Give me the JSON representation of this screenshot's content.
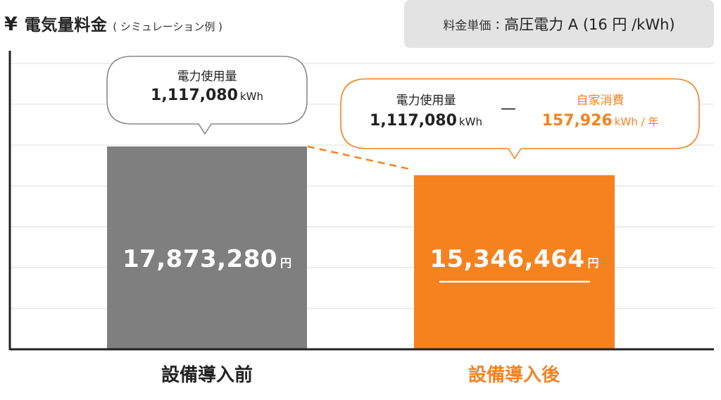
{
  "title": {
    "icon": "yen-icon",
    "yen_symbol": "¥",
    "main": "電気量料金",
    "sub": "( シミュレーション例 )"
  },
  "price_box": {
    "label": "料金単価",
    "colon": ":",
    "value": "高圧電力 A (16 円 /kWh)"
  },
  "bubble_before": {
    "label": "電力使用量",
    "value": "1,117,080",
    "unit": "kWh"
  },
  "bubble_after": {
    "usage_label": "電力使用量",
    "usage_value": "1,117,080",
    "usage_unit": "kWh",
    "minus": "—",
    "self_label": "自家消費",
    "self_value": "157,926",
    "self_unit": "kWh / 年"
  },
  "colors": {
    "before": "#7f7f7f",
    "after": "#f5821f",
    "grid": "#dcdcdc",
    "axis": "#222222",
    "bubble_before_border": "#888888",
    "bubble_after_border": "#f5821f"
  },
  "chart_data": {
    "type": "bar",
    "categories": [
      "設備導入前",
      "設備導入後"
    ],
    "values": [
      17873280,
      15346464
    ],
    "value_labels": [
      "17,873,280",
      "15,346,464"
    ],
    "value_unit": "円",
    "ylabel": "",
    "grid": true,
    "legend": "none"
  }
}
